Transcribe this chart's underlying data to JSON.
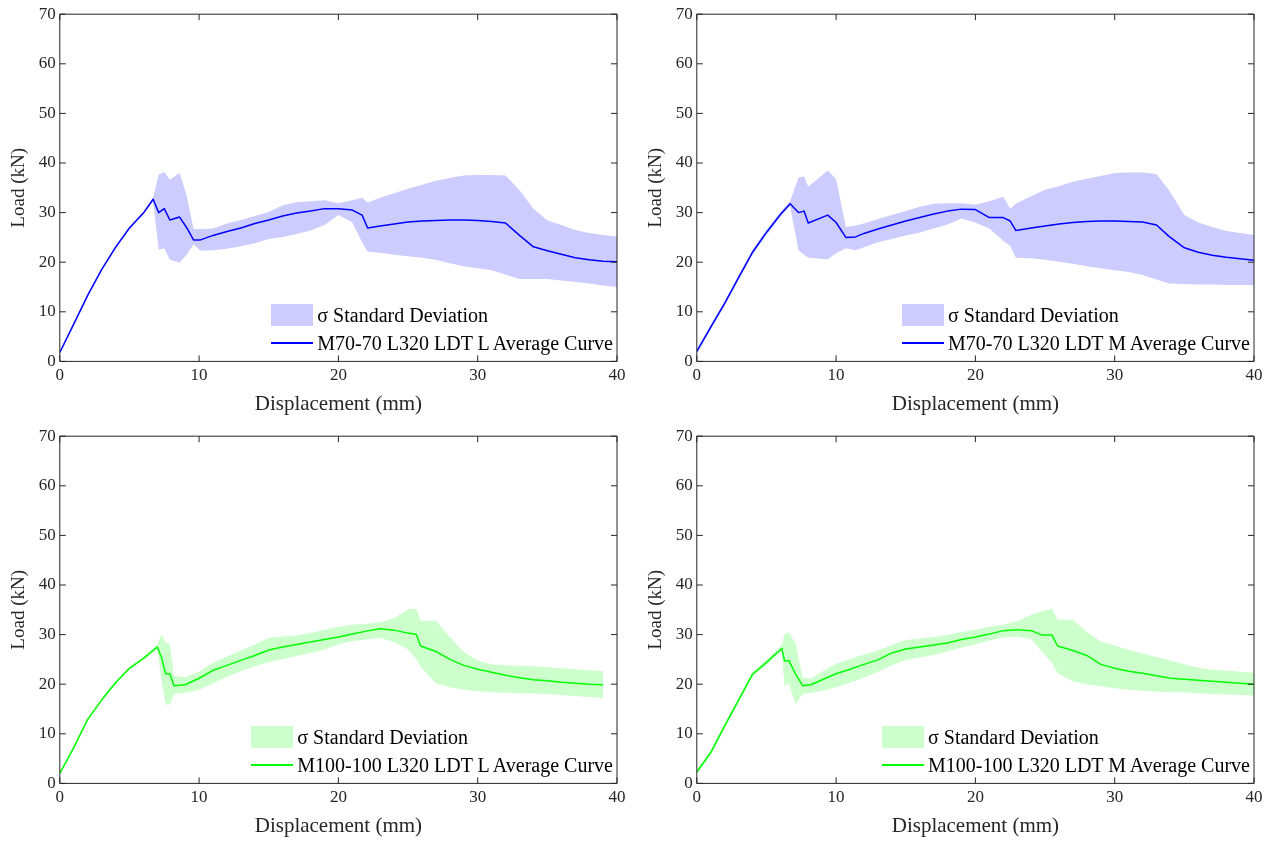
{
  "chart_data": [
    {
      "type": "line",
      "xlabel": "Displacement (mm)",
      "ylabel": "Load (kN)",
      "xlim": [
        0,
        40
      ],
      "ylim": [
        0,
        70
      ],
      "xticks": [
        0,
        10,
        20,
        30,
        40
      ],
      "yticks": [
        0,
        10,
        20,
        30,
        40,
        50,
        60,
        70
      ],
      "legend": "bottom right",
      "annotations": [
        "σ Standard Deviation"
      ],
      "series": [
        {
          "name": "M70-70 L320 LDT L Average Curve",
          "color": "#0000ff",
          "x": [
            0,
            1,
            2,
            3,
            4,
            5,
            6,
            6.7,
            7.1,
            7.5,
            7.9,
            8.6,
            9.1,
            9.6,
            10.1,
            11,
            12,
            13,
            14,
            15,
            16,
            17,
            18,
            19,
            20,
            21,
            21.7,
            22.1,
            23,
            24,
            25,
            26,
            27,
            28,
            29,
            30,
            31,
            32,
            33,
            34,
            35,
            36,
            37,
            38,
            39,
            40
          ],
          "values": [
            1.8,
            7.5,
            13.3,
            18.5,
            23.0,
            26.9,
            29.9,
            32.7,
            30.0,
            30.8,
            28.5,
            29.1,
            27.0,
            24.5,
            24.5,
            25.4,
            26.2,
            26.9,
            27.8,
            28.5,
            29.3,
            29.9,
            30.3,
            30.8,
            30.8,
            30.5,
            29.5,
            26.9,
            27.3,
            27.7,
            28.1,
            28.3,
            28.4,
            28.5,
            28.5,
            28.4,
            28.2,
            27.9,
            25.4,
            23.1,
            22.3,
            21.6,
            20.9,
            20.5,
            20.2,
            20.1
          ],
          "upper": [
            2.1,
            7.8,
            13.6,
            18.8,
            23.3,
            27.2,
            30.2,
            33.0,
            37.7,
            38.2,
            36.6,
            38.0,
            33.5,
            26.7,
            26.7,
            26.8,
            27.8,
            28.5,
            29.3,
            30.1,
            31.5,
            32.1,
            32.3,
            32.5,
            31.9,
            32.5,
            33.0,
            32.0,
            33.0,
            33.9,
            34.8,
            35.6,
            36.4,
            37.0,
            37.5,
            37.6,
            37.6,
            37.5,
            34.5,
            30.8,
            28.4,
            27.5,
            26.5,
            25.9,
            25.5,
            25.2
          ],
          "lower": [
            1.5,
            7.2,
            13.0,
            18.2,
            22.7,
            26.6,
            29.6,
            32.3,
            22.5,
            22.8,
            20.5,
            19.9,
            21.5,
            23.6,
            22.3,
            22.4,
            22.7,
            23.2,
            23.8,
            24.7,
            25.1,
            25.7,
            26.4,
            27.5,
            29.5,
            28.0,
            24.0,
            22.1,
            21.9,
            21.5,
            21.2,
            20.9,
            20.5,
            19.8,
            19.2,
            18.8,
            18.4,
            17.5,
            16.6,
            16.6,
            16.6,
            16.3,
            16.0,
            15.7,
            15.3,
            15.0
          ]
        }
      ]
    },
    {
      "type": "line",
      "xlabel": "Displacement (mm)",
      "ylabel": "Load (kN)",
      "xlim": [
        0,
        40
      ],
      "ylim": [
        0,
        70
      ],
      "xticks": [
        0,
        10,
        20,
        30,
        40
      ],
      "yticks": [
        0,
        10,
        20,
        30,
        40,
        50,
        60,
        70
      ],
      "legend": "bottom right",
      "annotations": [
        "σ Standard Deviation"
      ],
      "series": [
        {
          "name": "M70-70 L320 LDT M Average Curve",
          "color": "#0000ff",
          "x": [
            0,
            1,
            2,
            3,
            4,
            5,
            6,
            6.7,
            7.3,
            7.7,
            8.0,
            9.4,
            10.0,
            10.7,
            11.4,
            12,
            13,
            14,
            15,
            16,
            17,
            18,
            19,
            20,
            21,
            22,
            22.5,
            22.9,
            24,
            25,
            26,
            27,
            28,
            29,
            30,
            31,
            32,
            33,
            33.9,
            35,
            36,
            37,
            38,
            39,
            40
          ],
          "values": [
            2.0,
            6.9,
            11.7,
            16.9,
            22.0,
            26.0,
            29.6,
            31.8,
            30.0,
            30.3,
            27.9,
            29.5,
            28.0,
            25.0,
            25.1,
            25.8,
            26.7,
            27.5,
            28.3,
            29.0,
            29.7,
            30.3,
            30.7,
            30.6,
            29.0,
            29.0,
            28.3,
            26.4,
            26.9,
            27.3,
            27.7,
            28.0,
            28.2,
            28.3,
            28.3,
            28.2,
            28.1,
            27.5,
            25.2,
            22.9,
            22.0,
            21.4,
            21.0,
            20.7,
            20.4
          ],
          "upper": [
            2.5,
            7.4,
            12.2,
            17.4,
            22.5,
            26.5,
            30.1,
            32.3,
            37.1,
            37.3,
            35.2,
            38.5,
            36.7,
            27.1,
            27.4,
            27.8,
            28.7,
            29.5,
            30.3,
            31.2,
            31.8,
            31.9,
            31.9,
            31.6,
            32.3,
            33.2,
            30.8,
            31.8,
            33.3,
            34.6,
            35.3,
            36.2,
            36.8,
            37.4,
            38.0,
            38.1,
            38.1,
            37.8,
            34.5,
            29.5,
            28.0,
            27.1,
            26.3,
            25.9,
            25.5
          ],
          "lower": [
            1.5,
            6.4,
            11.2,
            16.4,
            21.5,
            25.5,
            29.1,
            31.3,
            22.4,
            21.5,
            20.9,
            20.6,
            21.8,
            22.8,
            22.4,
            23.0,
            24.0,
            24.7,
            25.4,
            26.0,
            26.8,
            27.6,
            28.8,
            28.0,
            26.8,
            24.3,
            23.3,
            20.9,
            20.8,
            20.5,
            20.1,
            19.7,
            19.2,
            18.8,
            18.4,
            18.0,
            17.4,
            16.5,
            15.7,
            15.6,
            15.5,
            15.5,
            15.4,
            15.4,
            15.4
          ]
        }
      ]
    },
    {
      "type": "line",
      "xlabel": "Displacement (mm)",
      "ylabel": "Load (kN)",
      "xlim": [
        0,
        40
      ],
      "ylim": [
        0,
        70
      ],
      "xticks": [
        0,
        10,
        20,
        30,
        40
      ],
      "yticks": [
        0,
        10,
        20,
        30,
        40,
        50,
        60,
        70
      ],
      "legend": "bottom right",
      "annotations": [
        "σ Standard Deviation"
      ],
      "series": [
        {
          "name": "M100-100 L320 LDT L Average Curve",
          "color": "#00ff00",
          "x": [
            0,
            1,
            2,
            3,
            4,
            5,
            6,
            7.0,
            7.3,
            7.6,
            7.9,
            8.2,
            9,
            10,
            11,
            12,
            13,
            14,
            15,
            16,
            17,
            18,
            19,
            20,
            21,
            22,
            23,
            24,
            25,
            25.6,
            25.9,
            27,
            28,
            29,
            30,
            31,
            32,
            33,
            34,
            35,
            36,
            37,
            38,
            39
          ],
          "values": [
            2.0,
            7.2,
            12.9,
            16.8,
            20.3,
            23.2,
            25.2,
            27.5,
            25.4,
            22.1,
            22.1,
            19.7,
            19.9,
            21.2,
            22.8,
            23.8,
            24.8,
            25.8,
            26.9,
            27.5,
            28.0,
            28.5,
            29.0,
            29.5,
            30.1,
            30.7,
            31.2,
            30.9,
            30.3,
            30.0,
            27.7,
            26.6,
            25.0,
            23.8,
            23.0,
            22.4,
            21.8,
            21.3,
            20.9,
            20.7,
            20.4,
            20.2,
            20.0,
            19.9
          ],
          "upper": [
            2.3,
            7.5,
            13.2,
            17.1,
            20.6,
            23.5,
            25.5,
            28.0,
            30.0,
            28.4,
            28.0,
            21.7,
            21.4,
            22.5,
            24.3,
            25.6,
            26.8,
            28.0,
            29.3,
            29.6,
            29.8,
            30.3,
            31.0,
            31.6,
            32.0,
            32.2,
            32.5,
            33.3,
            35.1,
            35.2,
            32.8,
            32.8,
            29.5,
            26.5,
            24.8,
            24.0,
            23.8,
            23.7,
            23.6,
            23.4,
            23.2,
            23.0,
            22.8,
            22.6
          ],
          "lower": [
            1.7,
            6.9,
            12.6,
            16.5,
            20.0,
            22.9,
            24.9,
            27.0,
            21.0,
            15.9,
            15.9,
            18.0,
            18.3,
            18.9,
            20.2,
            21.5,
            22.6,
            23.6,
            24.5,
            25.1,
            25.7,
            26.3,
            27.0,
            28.0,
            28.7,
            29.0,
            29.3,
            28.5,
            27.0,
            25.0,
            23.5,
            20.2,
            19.4,
            18.9,
            18.6,
            18.4,
            18.3,
            18.2,
            18.1,
            18.0,
            17.8,
            17.6,
            17.4,
            17.2
          ]
        }
      ]
    },
    {
      "type": "line",
      "xlabel": "Displacement (mm)",
      "ylabel": "Load (kN)",
      "xlim": [
        0,
        40
      ],
      "ylim": [
        0,
        70
      ],
      "xticks": [
        0,
        10,
        20,
        30,
        40
      ],
      "yticks": [
        0,
        10,
        20,
        30,
        40,
        50,
        60,
        70
      ],
      "legend": "bottom right",
      "annotations": [
        "σ Standard Deviation"
      ],
      "series": [
        {
          "name": "M100-100 L320 LDT M Average Curve",
          "color": "#00ff00",
          "x": [
            0,
            1,
            2,
            3,
            4,
            5,
            6.1,
            6.3,
            6.6,
            7.1,
            7.6,
            8.2,
            9,
            10,
            11,
            12,
            13,
            14,
            15,
            16,
            17,
            18,
            19,
            20,
            21,
            22,
            23,
            24,
            24.8,
            25.5,
            25.9,
            27,
            28,
            29,
            30,
            31,
            32,
            33,
            34,
            35,
            36,
            37,
            38,
            39,
            40
          ],
          "values": [
            2.3,
            6.2,
            11.6,
            16.8,
            22.0,
            24.4,
            27.2,
            24.7,
            24.8,
            22.0,
            19.7,
            19.9,
            20.9,
            22.1,
            23.0,
            24.0,
            24.9,
            26.3,
            27.1,
            27.5,
            27.9,
            28.3,
            29.0,
            29.5,
            30.1,
            30.8,
            31.0,
            30.8,
            29.9,
            29.9,
            27.7,
            26.8,
            25.8,
            24.0,
            23.2,
            22.6,
            22.2,
            21.7,
            21.2,
            21.0,
            20.8,
            20.6,
            20.4,
            20.2,
            20.0
          ],
          "upper": [
            2.8,
            6.7,
            12.1,
            17.3,
            22.5,
            24.9,
            27.9,
            30.1,
            30.4,
            28.2,
            21.3,
            21.1,
            22.5,
            24.1,
            25.1,
            26.0,
            26.8,
            27.9,
            28.9,
            29.2,
            29.5,
            29.9,
            30.5,
            31.0,
            31.6,
            32.0,
            32.7,
            34.0,
            34.7,
            35.2,
            33.0,
            33.0,
            30.5,
            28.6,
            27.8,
            26.9,
            26.2,
            25.5,
            24.8,
            24.0,
            23.3,
            22.9,
            22.7,
            22.5,
            22.3
          ],
          "lower": [
            1.8,
            5.7,
            11.1,
            16.3,
            21.5,
            23.9,
            26.7,
            19.5,
            20.2,
            16.0,
            18.0,
            18.3,
            18.7,
            19.4,
            20.3,
            21.3,
            22.5,
            23.8,
            24.9,
            25.4,
            25.9,
            26.6,
            27.4,
            28.0,
            28.8,
            29.4,
            29.6,
            29.1,
            26.5,
            24.2,
            22.2,
            20.6,
            20.0,
            19.6,
            19.2,
            18.9,
            18.7,
            18.5,
            18.4,
            18.4,
            18.2,
            18.0,
            17.9,
            17.8,
            17.7
          ]
        }
      ]
    }
  ]
}
